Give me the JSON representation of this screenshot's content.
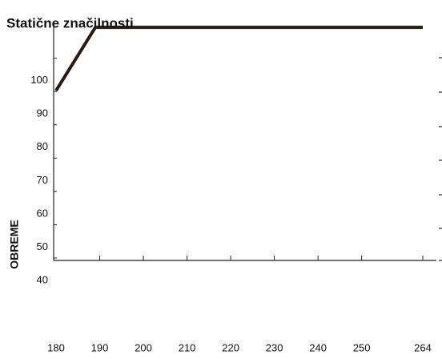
{
  "chart_data": {
    "type": "line",
    "title": "Statične značilnosti",
    "y_label": "OBREME",
    "x": [
      180,
      189,
      264
    ],
    "values": [
      97,
      116,
      116
    ],
    "color": "#2a1a14",
    "xlim": [
      180,
      264
    ],
    "ylim": [
      40,
      117
    ],
    "xticks": [
      180,
      190,
      200,
      210,
      220,
      230,
      240,
      250,
      264
    ],
    "yticks": [
      40,
      50,
      60,
      70,
      80,
      90,
      100
    ]
  }
}
